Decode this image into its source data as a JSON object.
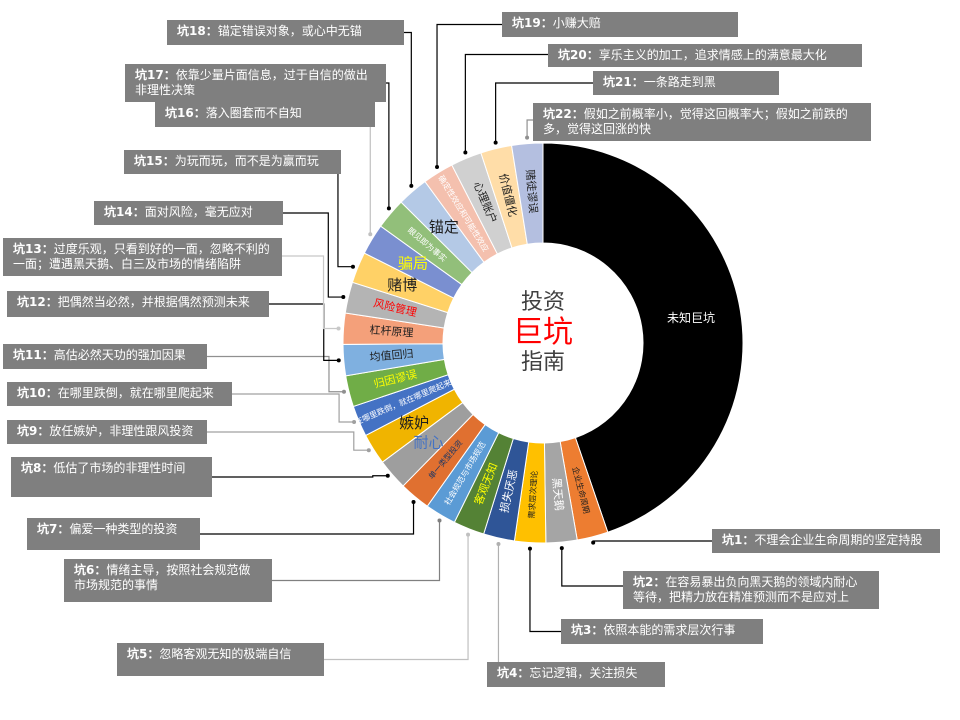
{
  "chart_data": {
    "type": "pie",
    "subtype": "donut",
    "title": "投资巨坑指南",
    "center_title": {
      "line1": "投资",
      "line2": "巨坑",
      "line3": "指南",
      "line2_color": "#ff0000",
      "text_color": "#404040"
    },
    "start": "top",
    "direction": "clockwise",
    "segments": [
      {
        "id": "unknown",
        "label": "未知巨坑",
        "value": 98,
        "color": "#000000",
        "label_color": "#ffffff"
      },
      {
        "id": "pit1",
        "label": "企业生命周期",
        "value": 5.5,
        "color": "#ed7d31",
        "label_color": "#1f1f1f"
      },
      {
        "id": "pit2",
        "label": "黑天鹅",
        "value": 5.5,
        "color": "#a5a5a5",
        "label_color": "#ffffff"
      },
      {
        "id": "pit3",
        "label": "需求层次理论",
        "value": 5.5,
        "color": "#ffc000",
        "label_color": "#1f1f1f"
      },
      {
        "id": "pit4",
        "label": "损失厌恶",
        "value": 5.5,
        "color": "#2f5597",
        "label_color": "#ffffff"
      },
      {
        "id": "pit5",
        "label": "客观无知",
        "value": 5.5,
        "color": "#548235",
        "label_color": "#ffff00"
      },
      {
        "id": "pit6",
        "label": "社会规范与市场规范",
        "value": 5.5,
        "color": "#5b9bd5",
        "label_color": "#ffffff"
      },
      {
        "id": "pit7",
        "label": "单一类型投资",
        "value": 5.5,
        "color": "#e07030",
        "label_color": "#1f3864"
      },
      {
        "id": "pit8",
        "label": "耐心",
        "value": 5.5,
        "color": "#9e9e9e",
        "label_color": "#4472c4"
      },
      {
        "id": "pit9",
        "label": "嫉妒",
        "value": 5.5,
        "color": "#f0b400",
        "label_color": "#1f1f1f"
      },
      {
        "id": "pit10",
        "label": "在哪里跌倒，就在哪里爬起来",
        "value": 5.5,
        "color": "#4472c4",
        "label_color": "#ffffff"
      },
      {
        "id": "pit11",
        "label": "归因谬误",
        "value": 5.5,
        "color": "#70ad47",
        "label_color": "#ffff00"
      },
      {
        "id": "pit12",
        "label": "均值回归",
        "value": 5.5,
        "color": "#7fb0e0",
        "label_color": "#1f1f1f"
      },
      {
        "id": "pit13",
        "label": "杠杆原理",
        "value": 5.5,
        "color": "#f4a07a",
        "label_color": "#1f1f1f"
      },
      {
        "id": "pit14",
        "label": "风险管理",
        "value": 5.5,
        "color": "#b4b4b4",
        "label_color": "#ff0000"
      },
      {
        "id": "pit15",
        "label": "赌博",
        "value": 5.5,
        "color": "#ffd166",
        "label_color": "#1f1f1f"
      },
      {
        "id": "pit16",
        "label": "骗局",
        "value": 5.5,
        "color": "#7a8fd0",
        "label_color": "#ffff00"
      },
      {
        "id": "pit17",
        "label": "眼见即为事实",
        "value": 5.5,
        "color": "#92bf7a",
        "label_color": "#ffffff"
      },
      {
        "id": "pit18",
        "label": "锚定",
        "value": 5.5,
        "color": "#b4c9e6",
        "label_color": "#1f1f1f"
      },
      {
        "id": "pit19",
        "label": "确定性效应和可能性效应",
        "value": 5.5,
        "color": "#f4c0ae",
        "label_color": "#ffffff"
      },
      {
        "id": "pit20",
        "label": "心理账户",
        "value": 5.5,
        "color": "#d0d0d0",
        "label_color": "#1f1f1f"
      },
      {
        "id": "pit21",
        "label": "价值僵化",
        "value": 5.5,
        "color": "#ffdda8",
        "label_color": "#1f1f1f"
      },
      {
        "id": "pit22",
        "label": "赌徒谬误",
        "value": 5.5,
        "color": "#b4bfe0",
        "label_color": "#1f1f1f"
      }
    ],
    "annotations": [
      {
        "target": "pit1",
        "prefix": "坑1：",
        "text": "不理会企业生命周期的坚定持股"
      },
      {
        "target": "pit2",
        "prefix": "坑2：",
        "text": "在容易暴出负向黑天鹅的领域内耐心等待，把精力放在精准预测而不是应对上"
      },
      {
        "target": "pit3",
        "prefix": "坑3：",
        "text": "依照本能的需求层次行事"
      },
      {
        "target": "pit4",
        "prefix": "坑4：",
        "text": "忘记逻辑，关注损失"
      },
      {
        "target": "pit5",
        "prefix": "坑5：",
        "text": "忽略客观无知的极端自信"
      },
      {
        "target": "pit6",
        "prefix": "坑6：",
        "text": "情绪主导，按照社会规范做市场规范的事情"
      },
      {
        "target": "pit7",
        "prefix": "坑7：",
        "text": "偏爱一种类型的投资"
      },
      {
        "target": "pit8",
        "prefix": "坑8：",
        "text": "低估了市场的非理性时间"
      },
      {
        "target": "pit9",
        "prefix": "坑9：",
        "text": "放任嫉妒，非理性跟风投资"
      },
      {
        "target": "pit10",
        "prefix": "坑10：",
        "text": "在哪里跌倒，就在哪里爬起来"
      },
      {
        "target": "pit11",
        "prefix": "坑11：",
        "text": "高估必然天功的强加因果"
      },
      {
        "target": "pit12",
        "prefix": "坑12：",
        "text": "把偶然当必然，并根据偶然预测未来"
      },
      {
        "target": "pit13",
        "prefix": "坑13：",
        "text": "过度乐观，只看到好的一面，忽略不利的一面；遭遇黑天鹅、白三及市场的情绪陷阱"
      },
      {
        "target": "pit14",
        "prefix": "坑14：",
        "text": "面对风险，毫无应对"
      },
      {
        "target": "pit15",
        "prefix": "坑15：",
        "text": "为玩而玩，而不是为赢而玩"
      },
      {
        "target": "pit16",
        "prefix": "坑16：",
        "text": "落入圈套而不自知"
      },
      {
        "target": "pit17",
        "prefix": "坑17：",
        "text": "依靠少量片面信息，过于自信的做出非理性决策"
      },
      {
        "target": "pit18",
        "prefix": "坑18：",
        "text": "锚定错误对象，或心中无锚"
      },
      {
        "target": "pit19",
        "prefix": "坑19：",
        "text": "小赚大赔"
      },
      {
        "target": "pit20",
        "prefix": "坑20：",
        "text": "享乐主义的加工，追求情感上的满意最大化"
      },
      {
        "target": "pit21",
        "prefix": "坑21：",
        "text": "一条路走到黑"
      },
      {
        "target": "pit22",
        "prefix": "坑22：",
        "text": "假如之前概率小，觉得这回概率大；假如之前跌的多，觉得这回涨的快"
      }
    ]
  }
}
